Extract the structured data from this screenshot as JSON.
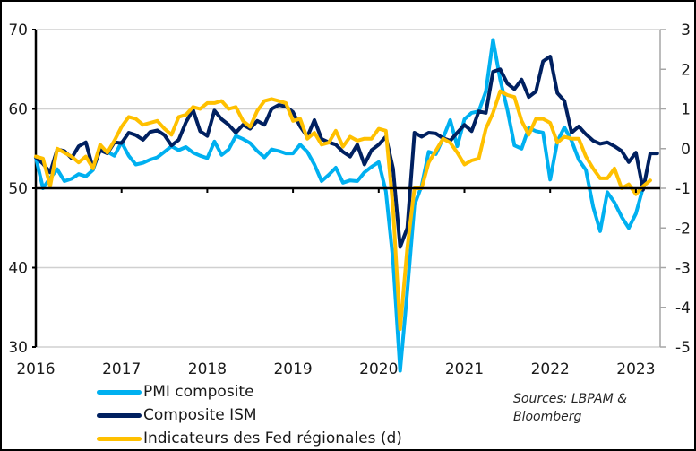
{
  "chart_data": {
    "type": "line",
    "title": "",
    "xlabel": "",
    "ylabel": "",
    "y2label": "",
    "x_start": "2016-01",
    "frequency": "monthly",
    "xticks": [
      "2016",
      "2017",
      "2018",
      "2019",
      "2020",
      "2021",
      "2022",
      "2023"
    ],
    "ylim": [
      30,
      70
    ],
    "yticks": [
      "30",
      "40",
      "50",
      "60",
      "70"
    ],
    "y2lim": [
      -5,
      3
    ],
    "y2ticks": [
      "-5",
      "-4",
      "-3",
      "-2",
      "-1",
      "0",
      "1",
      "2",
      "3"
    ],
    "x_axis_crosses_at": 50,
    "grid": "horizontal",
    "legend_position": "bottom-left",
    "series": [
      {
        "name": "PMI composite",
        "axis": "left",
        "color": "#00B0F0",
        "values": [
          53.9,
          50.0,
          51.3,
          52.4,
          50.9,
          51.2,
          51.8,
          51.5,
          52.3,
          54.9,
          54.6,
          54.1,
          55.8,
          54.1,
          53.0,
          53.2,
          53.6,
          53.9,
          54.6,
          55.3,
          54.8,
          55.2,
          54.5,
          54.1,
          53.8,
          55.9,
          54.2,
          54.9,
          56.6,
          56.2,
          55.7,
          54.7,
          53.9,
          54.9,
          54.7,
          54.4,
          54.4,
          55.5,
          54.6,
          53.0,
          50.9,
          51.7,
          52.6,
          50.7,
          51.0,
          50.9,
          52.0,
          52.7,
          53.3,
          49.6,
          40.9,
          27.0,
          37.0,
          47.9,
          50.3,
          54.6,
          54.3,
          56.3,
          58.6,
          55.3,
          58.7,
          59.5,
          59.7,
          62.2,
          68.7,
          63.7,
          59.9,
          55.4,
          55.0,
          57.6,
          57.2,
          57.0,
          51.1,
          55.9,
          57.7,
          56.0,
          53.6,
          52.3,
          47.7,
          44.6,
          49.5,
          48.2,
          46.4,
          45.0,
          46.8,
          50.1
        ]
      },
      {
        "name": "Composite ISM",
        "axis": "left",
        "color": "#002060",
        "values": [
          53.9,
          53.1,
          52.0,
          54.9,
          54.7,
          53.8,
          55.3,
          55.8,
          52.5,
          54.8,
          54.4,
          55.8,
          55.7,
          57.0,
          56.7,
          56.1,
          57.1,
          57.3,
          56.7,
          55.4,
          56.1,
          58.3,
          59.9,
          57.2,
          56.6,
          59.8,
          58.7,
          58.0,
          57.0,
          58.0,
          57.5,
          58.5,
          58.0,
          60.0,
          60.5,
          60.3,
          59.6,
          57.8,
          56.5,
          58.6,
          56.2,
          55.8,
          55.5,
          54.6,
          54.0,
          55.5,
          53.0,
          54.8,
          55.5,
          56.5,
          52.5,
          42.6,
          45.0,
          57.0,
          56.5,
          57.0,
          56.9,
          56.3,
          56.0,
          57.0,
          58.0,
          57.2,
          59.7,
          59.5,
          64.7,
          65.0,
          63.2,
          62.5,
          63.7,
          61.5,
          62.2,
          66.0,
          66.6,
          62.0,
          61.0,
          57.0,
          57.8,
          56.8,
          56.0,
          55.6,
          55.8,
          55.3,
          54.7,
          53.3,
          54.5,
          49.8,
          54.4,
          54.4
        ]
      },
      {
        "name": "Indicateurs des Fed régionales (d)",
        "axis": "right",
        "color": "#FFC000",
        "values": [
          -0.2,
          -0.25,
          -0.95,
          0.0,
          -0.1,
          -0.2,
          -0.35,
          -0.2,
          -0.5,
          0.1,
          -0.1,
          0.2,
          0.55,
          0.8,
          0.75,
          0.6,
          0.65,
          0.7,
          0.5,
          0.35,
          0.8,
          0.85,
          1.05,
          1.0,
          1.15,
          1.15,
          1.2,
          1.0,
          1.05,
          0.7,
          0.55,
          0.95,
          1.2,
          1.25,
          1.2,
          1.15,
          0.7,
          0.75,
          0.25,
          0.4,
          0.1,
          0.15,
          0.45,
          0.05,
          0.3,
          0.2,
          0.25,
          0.25,
          0.5,
          0.45,
          -1.5,
          -4.55,
          -2.5,
          -1.0,
          -1.0,
          -0.35,
          -0.05,
          0.25,
          0.15,
          -0.1,
          -0.4,
          -0.3,
          -0.25,
          0.5,
          0.9,
          1.45,
          1.35,
          1.3,
          0.7,
          0.35,
          0.75,
          0.75,
          0.65,
          0.15,
          0.3,
          0.25,
          0.25,
          -0.2,
          -0.5,
          -0.75,
          -0.75,
          -0.5,
          -1.0,
          -0.9,
          -1.15,
          -0.95,
          -0.8
        ]
      }
    ],
    "annotations": [
      "Sources: LBPAM & Bloomberg"
    ]
  },
  "legend": {
    "items": [
      {
        "label": "PMI composite",
        "color": "#00B0F0"
      },
      {
        "label": "Composite ISM",
        "color": "#002060"
      },
      {
        "label": "Indicateurs des Fed régionales (d)",
        "color": "#FFC000"
      }
    ]
  },
  "source": {
    "line1": "Sources: LBPAM &",
    "line2": "Bloomberg"
  }
}
